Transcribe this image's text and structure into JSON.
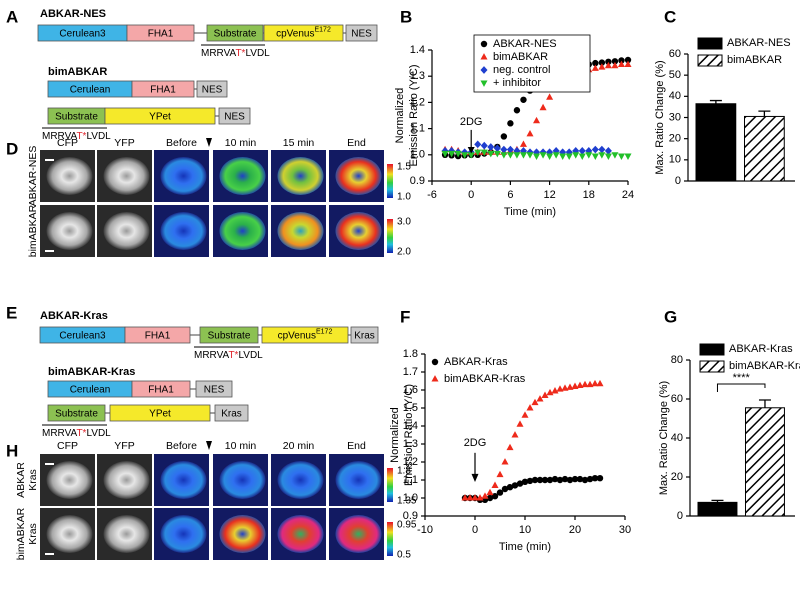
{
  "figure": {
    "panel_labels": [
      "A",
      "B",
      "C",
      "D",
      "E",
      "F",
      "G",
      "H"
    ],
    "constructs": [
      {
        "name": "ABKAR-NES",
        "rows": [
          {
            "boxes": [
              {
                "label": "Cerulean3",
                "color": "#3fb4e6"
              },
              {
                "label": "FHA1",
                "color": "#f4a7a8"
              },
              {
                "label": "Substrate",
                "color": "#8cc152"
              },
              {
                "label": "cpVenus",
                "sup": "E172",
                "color": "#f5e92a"
              },
              {
                "label": "NES",
                "color": "#c9c9c9"
              }
            ],
            "sequence": [
              "MRRVA",
              "T*",
              "LVDL"
            ]
          }
        ]
      },
      {
        "name": "bimABKAR",
        "rows": [
          {
            "boxes": [
              {
                "label": "Cerulean",
                "color": "#3fb4e6"
              },
              {
                "label": "FHA1",
                "color": "#f4a7a8"
              },
              {
                "label": "NES",
                "color": "#c9c9c9"
              }
            ]
          },
          {
            "boxes": [
              {
                "label": "Substrate",
                "color": "#8cc152"
              },
              {
                "label": "YPet",
                "color": "#f5e92a"
              },
              {
                "label": "NES",
                "color": "#c9c9c9"
              }
            ],
            "sequence": [
              "MRRVA",
              "T*",
              "LVDL"
            ]
          }
        ]
      },
      {
        "name": "ABKAR-Kras",
        "rows": [
          {
            "boxes": [
              {
                "label": "Cerulean3",
                "color": "#3fb4e6"
              },
              {
                "label": "FHA1",
                "color": "#f4a7a8"
              },
              {
                "label": "Substrate",
                "color": "#8cc152"
              },
              {
                "label": "cpVenus",
                "sup": "E172",
                "color": "#f5e92a"
              },
              {
                "label": "Kras",
                "color": "#c9c9c9"
              }
            ],
            "sequence": [
              "MRRVA",
              "T*",
              "LVDL"
            ]
          }
        ]
      },
      {
        "name": "bimABKAR-Kras",
        "rows": [
          {
            "boxes": [
              {
                "label": "Cerulean",
                "color": "#3fb4e6"
              },
              {
                "label": "FHA1",
                "color": "#f4a7a8"
              },
              {
                "label": "NES",
                "color": "#c9c9c9"
              }
            ]
          },
          {
            "boxes": [
              {
                "label": "Substrate",
                "color": "#8cc152"
              },
              {
                "label": "YPet",
                "color": "#f5e92a"
              },
              {
                "label": "Kras",
                "color": "#c9c9c9"
              }
            ],
            "sequence": [
              "MRRVA",
              "T*",
              "LVDL"
            ]
          }
        ]
      }
    ],
    "image_panels": [
      {
        "columns": [
          "CFP",
          "YFP",
          "Before",
          "10 min",
          "15 min",
          "End"
        ],
        "rows": [
          {
            "label": [
              "ABKAR-NES"
            ],
            "colorbar": [
              "1.5",
              "1.0"
            ]
          },
          {
            "label": [
              "bimABKAR"
            ],
            "colorbar": [
              "3.0",
              "2.0"
            ]
          }
        ]
      },
      {
        "columns": [
          "CFP",
          "YFP",
          "Before",
          "10 min",
          "20 min",
          "End"
        ],
        "rows": [
          {
            "label": [
              "ABKAR",
              "Kras"
            ],
            "colorbar": [
              "1.8",
              "1.35"
            ]
          },
          {
            "label": [
              "bimABKAR",
              "Kras"
            ],
            "colorbar": [
              "0.95",
              "0.5"
            ]
          }
        ]
      }
    ]
  },
  "chart_data": [
    {
      "type": "line",
      "xlabel": "Time (min)",
      "ylabel": [
        "Normalized",
        "Emission Ratio (Y/C)"
      ],
      "x": [
        -4,
        -3,
        -2,
        -1,
        0,
        1,
        2,
        3,
        4,
        5,
        6,
        7,
        8,
        9,
        10,
        11,
        12,
        13,
        14,
        15,
        16,
        17,
        18,
        19,
        20,
        21,
        22,
        23,
        24
      ],
      "series": [
        {
          "name": "ABKAR-NES",
          "color": "#000000",
          "marker": "circle",
          "values": [
            1.0,
            0.998,
            0.995,
            0.998,
            1.0,
            1.0,
            1.005,
            1.01,
            1.03,
            1.07,
            1.12,
            1.17,
            1.21,
            1.245,
            1.27,
            1.29,
            1.305,
            1.315,
            1.325,
            1.33,
            1.335,
            1.34,
            1.345,
            1.35,
            1.352,
            1.355,
            1.357,
            1.36,
            1.362
          ]
        },
        {
          "name": "bimABKAR",
          "color": "#ee2a1b",
          "marker": "triangle-up",
          "values": [
            1.02,
            1.02,
            1.015,
            1.01,
            1.01,
            1.01,
            1.01,
            1.01,
            1.01,
            1.01,
            1.015,
            1.02,
            1.04,
            1.08,
            1.13,
            1.18,
            1.22,
            1.25,
            1.27,
            1.29,
            1.305,
            1.315,
            1.325,
            1.33,
            1.335,
            1.34,
            1.34,
            1.345,
            1.345
          ]
        },
        {
          "name": "neg. control",
          "color": "#1f3fcf",
          "marker": "diamond",
          "values": [
            1.015,
            1.015,
            1.01,
            1.01,
            1.01,
            1.04,
            1.035,
            1.03,
            1.025,
            1.02,
            1.02,
            1.015,
            1.015,
            1.01,
            1.01,
            1.01,
            1.01,
            1.015,
            1.01,
            1.01,
            1.015,
            1.015,
            1.015,
            1.02,
            1.02,
            1.015,
            null,
            null,
            null
          ]
        },
        {
          "name": "+ inhibitor",
          "color": "#22c02a",
          "marker": "triangle-down",
          "values": [
            1.005,
            1.005,
            1.005,
            1.0,
            1.0,
            1.01,
            1.01,
            1.005,
            1.005,
            1.0,
            1.0,
            1.0,
            1.0,
            1.0,
            0.995,
            1.0,
            0.995,
            1.0,
            0.995,
            0.995,
            1.0,
            0.995,
            1.0,
            0.995,
            1.0,
            0.995,
            1.0,
            0.995,
            0.995
          ]
        }
      ],
      "xlim": [
        -6,
        24
      ],
      "xticks": [
        -6,
        0,
        6,
        12,
        18,
        24
      ],
      "ylim": [
        0.9,
        1.4
      ],
      "yticks": [
        0.9,
        {
          "value": 1,
          "label": "1.0"
        },
        1.1,
        1.2,
        1.3,
        1.4
      ],
      "annotation": {
        "text": "2DG",
        "x": 0
      },
      "legend": "upper left",
      "legend_frame": true
    },
    {
      "type": "bar",
      "ylabel": "Max. Ratio Change (%)",
      "series": [
        {
          "name": "ABKAR-NES",
          "color": "#000000",
          "pattern": "solid",
          "values": [
            36.5
          ],
          "errors": [
            1.5
          ]
        },
        {
          "name": "bimABKAR",
          "color": "#000000",
          "pattern": "hatch",
          "values": [
            30.5
          ],
          "errors": [
            2.5
          ]
        }
      ],
      "ylim": [
        0,
        60
      ],
      "yticks": [
        0,
        10,
        20,
        30,
        40,
        50,
        60
      ],
      "legend": "upper right"
    },
    {
      "type": "line",
      "xlabel": "Time (min)",
      "ylabel": [
        "Normalized",
        "Emission Ratio (Y/C)"
      ],
      "x": [
        -2,
        -1,
        0,
        1,
        2,
        3,
        4,
        5,
        6,
        7,
        8,
        9,
        10,
        11,
        12,
        13,
        14,
        15,
        16,
        17,
        18,
        19,
        20,
        21,
        22,
        23,
        24,
        25
      ],
      "series": [
        {
          "name": "ABKAR-Kras",
          "color": "#000000",
          "marker": "circle",
          "values": [
            1.0,
            1.0,
            1.0,
            0.99,
            0.99,
            1.0,
            1.01,
            1.03,
            1.05,
            1.06,
            1.07,
            1.08,
            1.09,
            1.095,
            1.1,
            1.1,
            1.1,
            1.1,
            1.105,
            1.1,
            1.105,
            1.1,
            1.105,
            1.105,
            1.1,
            1.105,
            1.11,
            1.11
          ]
        },
        {
          "name": "bimABKAR-Kras",
          "color": "#ee2a1b",
          "marker": "triangle-up",
          "values": [
            1.0,
            1.0,
            1.0,
            1.0,
            1.01,
            1.03,
            1.07,
            1.13,
            1.2,
            1.28,
            1.35,
            1.41,
            1.46,
            1.5,
            1.53,
            1.55,
            1.57,
            1.585,
            1.595,
            1.605,
            1.61,
            1.615,
            1.62,
            1.625,
            1.63,
            1.63,
            1.635,
            1.635
          ]
        }
      ],
      "xlim": [
        -10,
        30
      ],
      "xticks": [
        -10,
        0,
        10,
        20,
        30
      ],
      "ylim": [
        0.9,
        1.8
      ],
      "yticks": [
        0.9,
        {
          "value": 1,
          "label": "1.0"
        },
        1.1,
        1.2,
        1.3,
        1.4,
        1.5,
        1.6,
        1.7,
        1.8
      ],
      "annotation": {
        "text": "2DG",
        "x": 0
      },
      "legend": "upper left",
      "legend_frame": false
    },
    {
      "type": "bar",
      "ylabel": "Max. Ratio Change (%)",
      "series": [
        {
          "name": "ABKAR-Kras",
          "color": "#000000",
          "pattern": "solid",
          "values": [
            7
          ],
          "errors": [
            1
          ]
        },
        {
          "name": "bimABKAR-Kras",
          "color": "#000000",
          "pattern": "hatch",
          "values": [
            55.5
          ],
          "errors": [
            4
          ]
        }
      ],
      "ylim": [
        0,
        80
      ],
      "yticks": [
        0,
        20,
        40,
        60,
        80
      ],
      "legend": "upper right",
      "significance": "****"
    }
  ]
}
